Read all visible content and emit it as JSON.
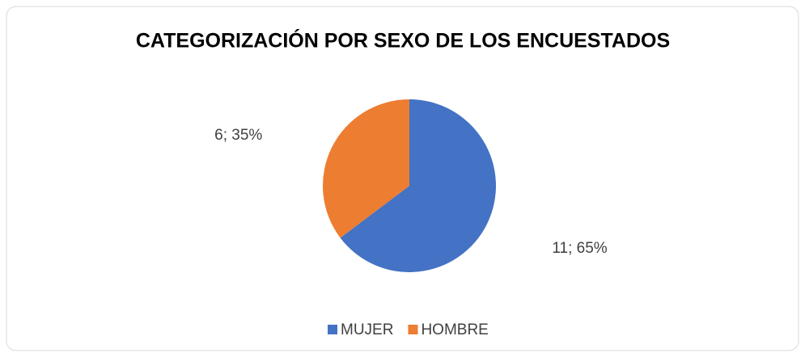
{
  "chart_data": {
    "type": "pie",
    "title": "CATEGORIZACIÓN POR SEXO DE LOS ENCUESTADOS",
    "categories": [
      "MUJER",
      "HOMBRE"
    ],
    "values": [
      11,
      6
    ],
    "value_labels": [
      "11; 65%",
      "6; 35%"
    ],
    "colors": [
      "#4472c4",
      "#ed7d31"
    ],
    "legend": "bottom"
  }
}
